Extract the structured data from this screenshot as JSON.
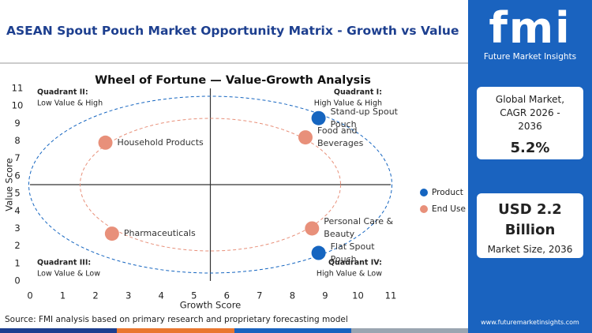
{
  "header": {
    "title": "ASEAN Spout Pouch Market Opportunity Matrix - Growth vs Value"
  },
  "chart_data": {
    "type": "scatter",
    "title": "Wheel of Fortune — Value-Growth Analysis",
    "x_label": "Growth Score",
    "y_label": "Value Score",
    "xlim": [
      0,
      11
    ],
    "ylim": [
      0,
      11
    ],
    "xticks": [
      0,
      1,
      2,
      3,
      4,
      5,
      6,
      7,
      8,
      9,
      10,
      11
    ],
    "yticks": [
      0,
      1,
      2,
      3,
      4,
      5,
      6,
      7,
      8,
      9,
      10,
      11
    ],
    "legend": "right",
    "series": [
      {
        "name": "Product",
        "color": "#1565c0",
        "x": [
          8.8,
          8.8
        ],
        "values": [
          9.3,
          1.6
        ],
        "labels": [
          "Stand-up Spout Pouch",
          "Flat Spout Pouch"
        ]
      },
      {
        "name": "End Use",
        "color": "#e8907a",
        "x": [
          2.3,
          8.4,
          2.5,
          8.6
        ],
        "values": [
          7.9,
          8.2,
          2.7,
          3.0
        ],
        "labels": [
          "Household Products",
          "Food and Beverages",
          "Pharmaceuticals",
          "Personal Care & Beauty"
        ]
      }
    ],
    "quadrants": [
      {
        "name": "Quadrant I:",
        "label": "High Value & High"
      },
      {
        "name": "Quadrant II:",
        "label": "Low Value & High"
      },
      {
        "name": "Quadrant III:",
        "label": "Low Value & Low"
      },
      {
        "name": "Quadrant IV:",
        "label": "High Value & Low"
      }
    ]
  },
  "sidebar": {
    "brand": "fmi",
    "brand_name": "Future Market Insights",
    "cagr_label": "Global Market, CAGR 2026 - 2036",
    "cagr": "5.2%",
    "market_size": "USD 2.2 Billion",
    "market_size_label": "Market Size, 2036",
    "website": "www.futuremarketinsights.com"
  },
  "source": "Source: FMI analysis based on primary research and proprietary forecasting model"
}
